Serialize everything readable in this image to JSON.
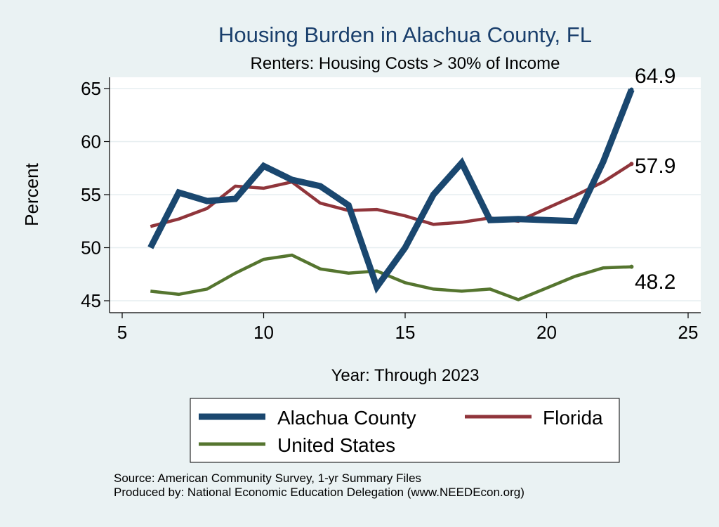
{
  "chart_data": {
    "type": "line",
    "title": "Housing Burden in Alachua County, FL",
    "subtitle": "Renters: Housing Costs > 30% of Income",
    "xlabel": "Year: Through 2023",
    "ylabel": "Percent",
    "xlim": [
      5,
      25
    ],
    "ylim": [
      44.3,
      66
    ],
    "xticks": [
      5,
      10,
      15,
      20,
      25
    ],
    "yticks": [
      45,
      50,
      55,
      60,
      65
    ],
    "grid": "horizontal",
    "legend_position": "bottom",
    "series": [
      {
        "name": "Alachua County",
        "color": "#1a476f",
        "x": [
          6,
          7,
          8,
          9,
          10,
          11,
          12,
          13,
          14,
          15,
          16,
          17,
          18,
          19,
          20,
          21,
          22,
          23
        ],
        "y": [
          50.0,
          55.2,
          54.4,
          54.6,
          57.7,
          56.4,
          55.8,
          54.0,
          46.3,
          50.0,
          55.0,
          58.0,
          52.6,
          52.7,
          52.6,
          52.5,
          58.1,
          64.9
        ],
        "end_label": "64.9"
      },
      {
        "name": "Florida",
        "color": "#90353b",
        "x": [
          6,
          7,
          8,
          9,
          10,
          11,
          12,
          13,
          14,
          15,
          16,
          17,
          18,
          19,
          20,
          21,
          22,
          23
        ],
        "y": [
          52.0,
          52.7,
          53.7,
          55.8,
          55.6,
          56.2,
          54.2,
          53.5,
          53.6,
          53.0,
          52.2,
          52.4,
          52.8,
          52.5,
          53.7,
          54.9,
          56.2,
          57.9
        ],
        "end_label": "57.9"
      },
      {
        "name": "United States",
        "color": "#55752f",
        "x": [
          6,
          7,
          8,
          9,
          10,
          11,
          12,
          13,
          14,
          15,
          16,
          17,
          18,
          19,
          20,
          21,
          22,
          23
        ],
        "y": [
          45.9,
          45.6,
          46.1,
          47.6,
          48.9,
          49.3,
          48.0,
          47.6,
          47.8,
          46.7,
          46.1,
          45.9,
          46.1,
          45.1,
          46.2,
          47.3,
          48.1,
          48.2
        ],
        "end_label": "48.2"
      }
    ]
  },
  "notes": {
    "source": "Source: American Community Survey, 1-yr Summary Files",
    "produced": "Produced by: National Economic Education Delegation (www.NEEDEcon.org)"
  }
}
